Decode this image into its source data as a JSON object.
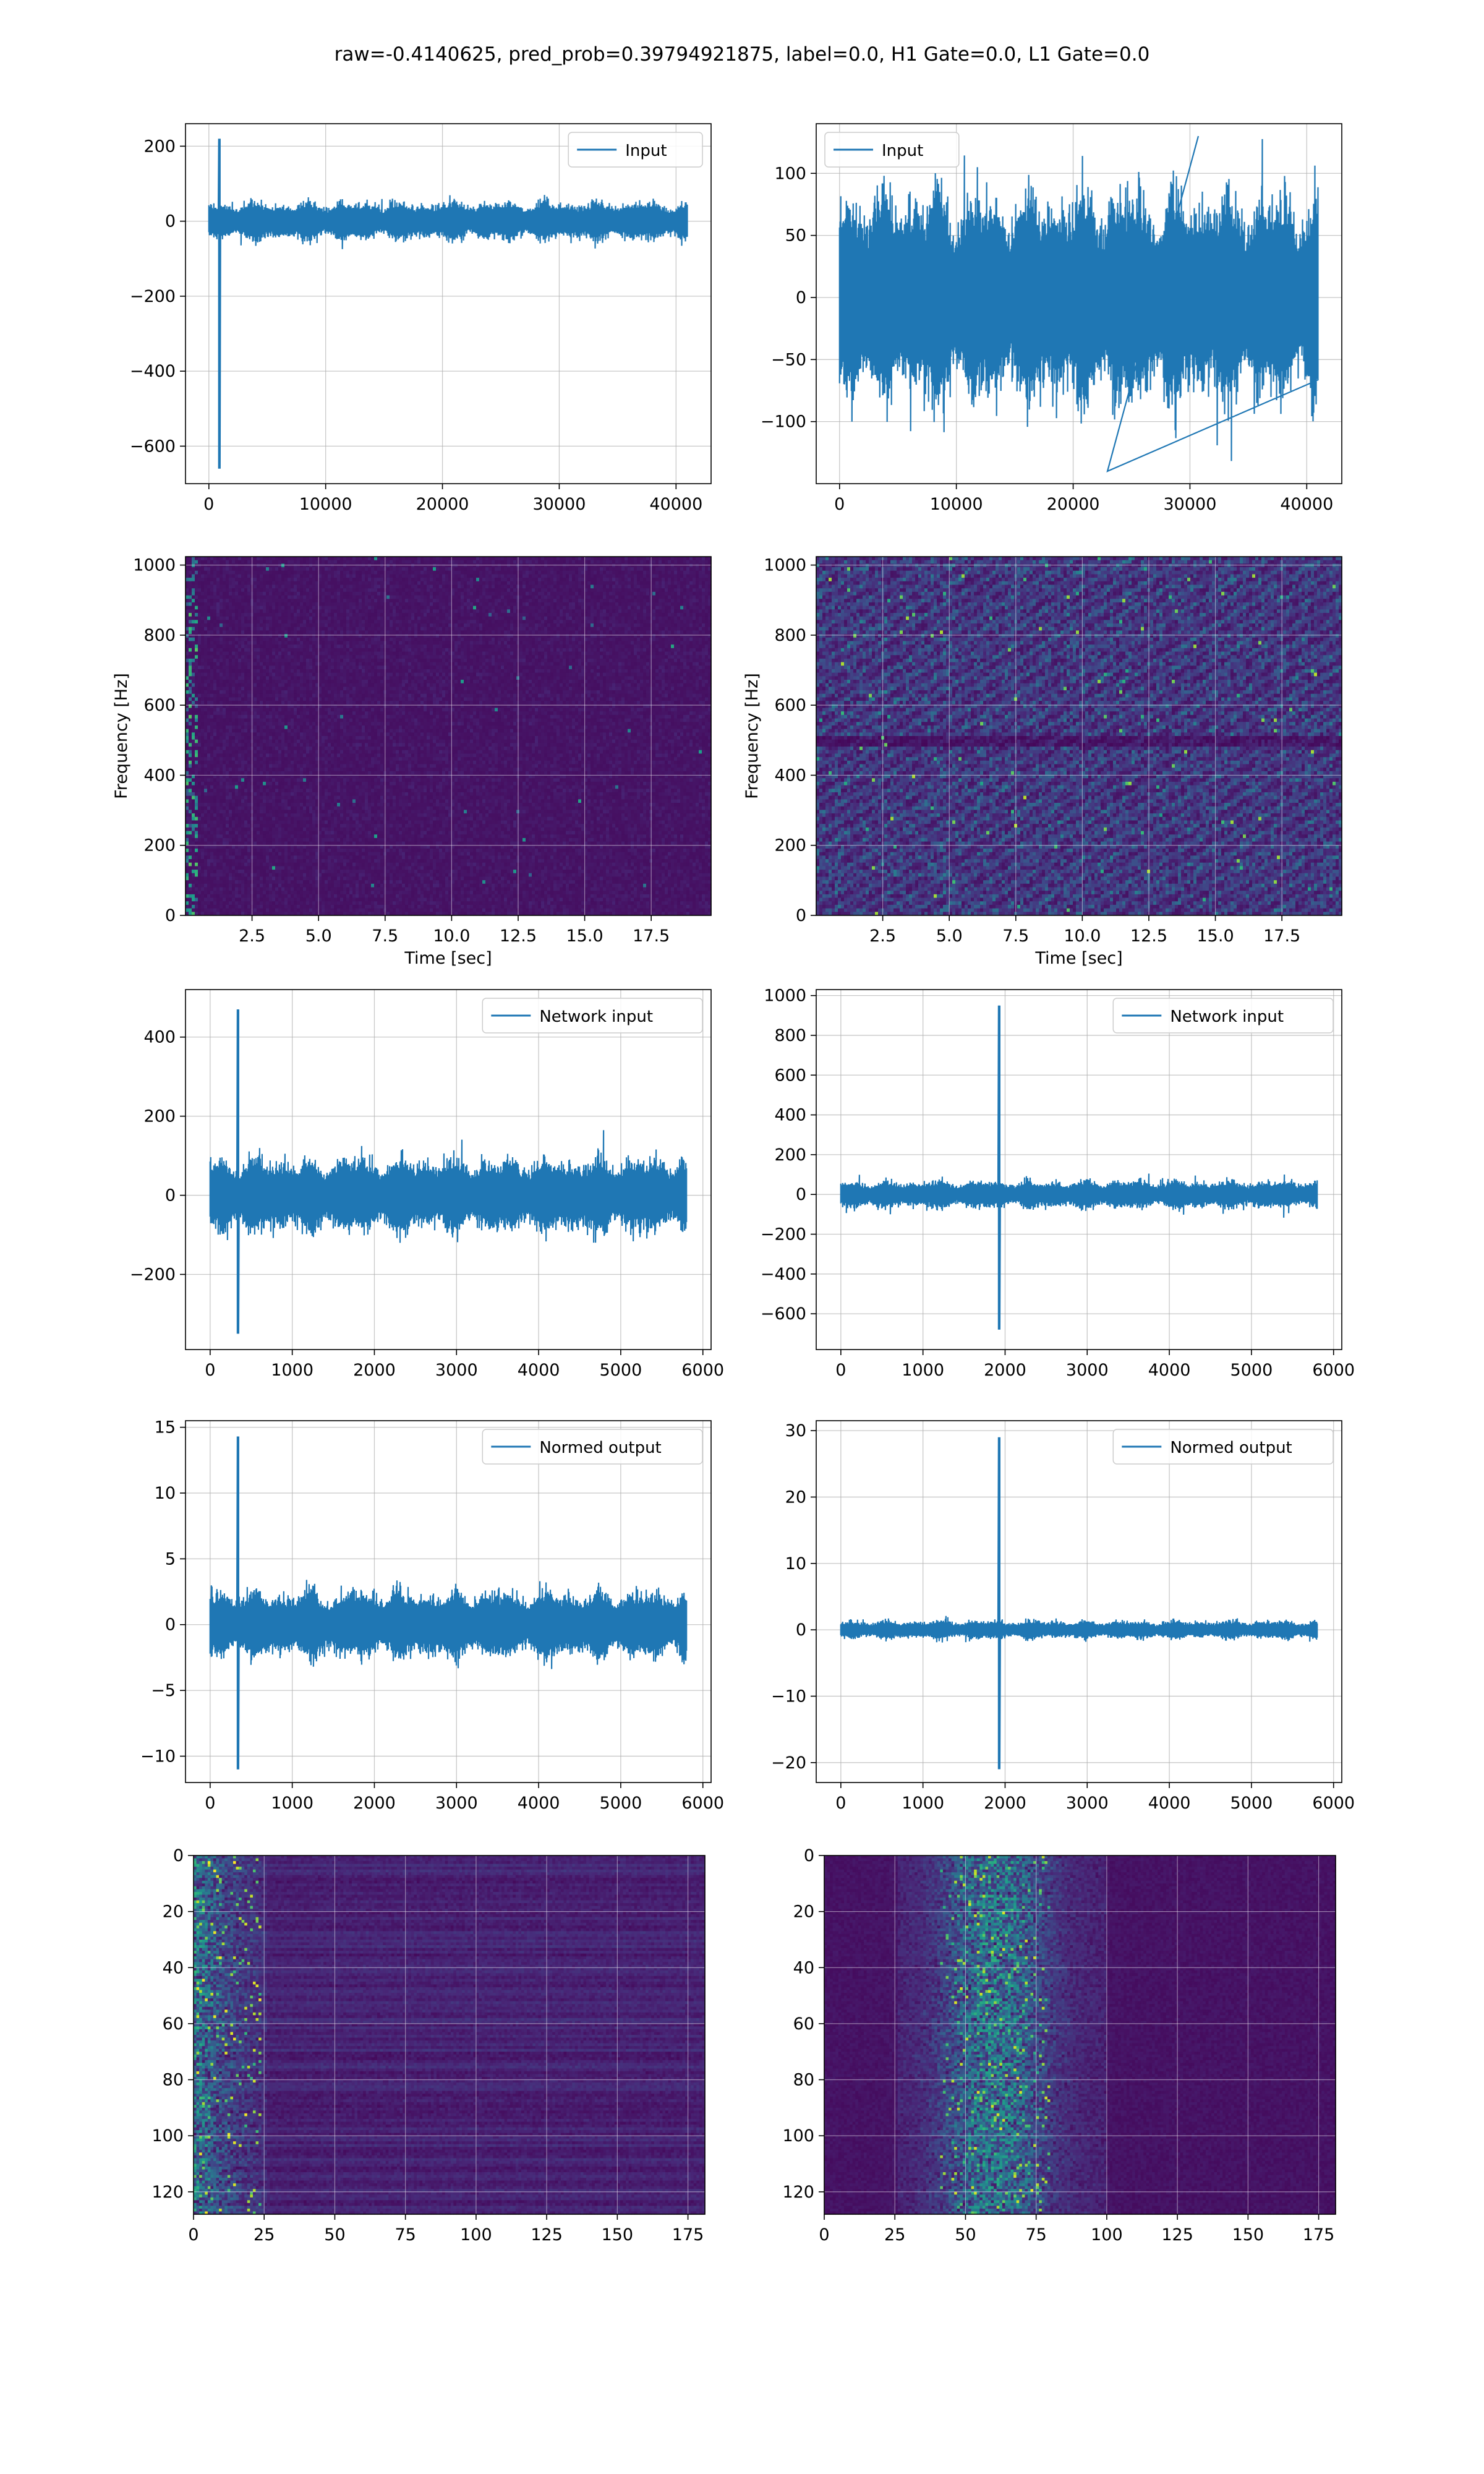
{
  "figure": {
    "title": "raw=-0.4140625, pred_prob=0.39794921875, label=0.0, H1 Gate=0.0, L1 Gate=0.0"
  },
  "colors": {
    "line": "#1f77b4",
    "grid": "#b0b0b0",
    "viridis_low": "#440154",
    "viridis_high": "#fde725"
  },
  "chart_data": [
    {
      "type": "line",
      "panel": "row1-left",
      "series": [
        {
          "name": "Input",
          "x_range": [
            0,
            40960
          ],
          "baseline": 0,
          "noise_amp": 60,
          "min": -660,
          "max": 220,
          "spike_x": 900
        }
      ],
      "xlim": [
        -2000,
        43000
      ],
      "ylim": [
        -700,
        260
      ],
      "xticks": [
        0,
        10000,
        20000,
        30000,
        40000
      ],
      "yticks": [
        200,
        0,
        -200,
        -400,
        -600
      ],
      "legend": "top-right",
      "grid": true,
      "xlabel": "",
      "ylabel": ""
    },
    {
      "type": "line",
      "panel": "row1-right",
      "series": [
        {
          "name": "Input",
          "x_range": [
            0,
            40960
          ],
          "baseline": 0,
          "noise_amp": 100,
          "min": -140,
          "max": 130
        }
      ],
      "xlim": [
        -2000,
        43000
      ],
      "ylim": [
        -150,
        140
      ],
      "xticks": [
        0,
        10000,
        20000,
        30000,
        40000
      ],
      "yticks": [
        100,
        50,
        0,
        -50,
        -100
      ],
      "legend": "top-left",
      "grid": true,
      "xlabel": "",
      "ylabel": ""
    },
    {
      "type": "heatmap",
      "panel": "row2-left",
      "colormap": "viridis",
      "xlim": [
        0,
        19.75
      ],
      "ylim": [
        0,
        1024
      ],
      "xticks": [
        "2.5",
        "5.0",
        "7.5",
        "10.0",
        "12.5",
        "15.0",
        "17.5"
      ],
      "yticks": [
        "0",
        "200",
        "400",
        "600",
        "800",
        "1000"
      ],
      "xlabel": "Time [sec]",
      "ylabel": "Frequency [Hz]",
      "grid": true,
      "intensity": "low",
      "features": "bright power near t=0.4 s"
    },
    {
      "type": "heatmap",
      "panel": "row2-right",
      "colormap": "viridis",
      "xlim": [
        0,
        19.75
      ],
      "ylim": [
        0,
        1024
      ],
      "xticks": [
        "2.5",
        "5.0",
        "7.5",
        "10.0",
        "12.5",
        "15.0",
        "17.5"
      ],
      "yticks": [
        "0",
        "200",
        "400",
        "600",
        "800",
        "1000"
      ],
      "xlabel": "Time [sec]",
      "ylabel": "Frequency [Hz]",
      "grid": true,
      "intensity": "medium",
      "features": "dark band near 500 Hz"
    },
    {
      "type": "line",
      "panel": "row3-left",
      "series": [
        {
          "name": "Network input",
          "x_range": [
            0,
            5800
          ],
          "baseline": 0,
          "noise_amp": 110,
          "min": -350,
          "max": 470,
          "spike_x": 340
        }
      ],
      "xlim": [
        -300,
        6100
      ],
      "ylim": [
        -390,
        520
      ],
      "xticks": [
        0,
        1000,
        2000,
        3000,
        4000,
        5000,
        6000
      ],
      "yticks": [
        400,
        200,
        0,
        -200
      ],
      "legend": "top-right",
      "grid": true,
      "xlabel": "",
      "ylabel": ""
    },
    {
      "type": "line",
      "panel": "row3-right",
      "series": [
        {
          "name": "Network input",
          "x_range": [
            0,
            5800
          ],
          "baseline": 0,
          "noise_amp": 80,
          "min": -680,
          "max": 950,
          "spike_x": 1930
        }
      ],
      "xlim": [
        -300,
        6100
      ],
      "ylim": [
        -780,
        1030
      ],
      "xticks": [
        0,
        1000,
        2000,
        3000,
        4000,
        5000,
        6000
      ],
      "yticks": [
        1000,
        800,
        600,
        400,
        200,
        0,
        -200,
        -400,
        -600
      ],
      "legend": "top-right",
      "grid": true,
      "xlabel": "",
      "ylabel": ""
    },
    {
      "type": "line",
      "panel": "row4-left",
      "series": [
        {
          "name": "Normed output",
          "x_range": [
            0,
            5800
          ],
          "baseline": 0,
          "noise_amp": 3,
          "min": -11,
          "max": 14.3,
          "spike_x": 340
        }
      ],
      "xlim": [
        -300,
        6100
      ],
      "ylim": [
        -12,
        15.5
      ],
      "xticks": [
        0,
        1000,
        2000,
        3000,
        4000,
        5000,
        6000
      ],
      "yticks": [
        15,
        10,
        5,
        0,
        -5,
        -10
      ],
      "legend": "top-right",
      "grid": true,
      "xlabel": "",
      "ylabel": ""
    },
    {
      "type": "line",
      "panel": "row4-right",
      "series": [
        {
          "name": "Normed output",
          "x_range": [
            0,
            5800
          ],
          "baseline": 0,
          "noise_amp": 1.6,
          "min": -21,
          "max": 29,
          "spike_x": 1930
        }
      ],
      "xlim": [
        -300,
        6100
      ],
      "ylim": [
        -23,
        31.5
      ],
      "xticks": [
        0,
        1000,
        2000,
        3000,
        4000,
        5000,
        6000
      ],
      "yticks": [
        30,
        20,
        10,
        0,
        -10,
        -20
      ],
      "legend": "top-right",
      "grid": true,
      "xlabel": "",
      "ylabel": ""
    },
    {
      "type": "heatmap",
      "panel": "row5-left",
      "colormap": "viridis",
      "rows": 128,
      "cols": 181,
      "xlim": [
        0,
        181
      ],
      "ylim": [
        128,
        0
      ],
      "xticks": [
        "0",
        "25",
        "50",
        "75",
        "100",
        "125",
        "150",
        "175"
      ],
      "yticks": [
        "0",
        "20",
        "40",
        "60",
        "80",
        "100",
        "120"
      ],
      "grid": true,
      "features": "bright activations in columns 0-25"
    },
    {
      "type": "heatmap",
      "panel": "row5-right",
      "colormap": "viridis",
      "rows": 128,
      "cols": 181,
      "xlim": [
        0,
        181
      ],
      "ylim": [
        128,
        0
      ],
      "xticks": [
        "0",
        "25",
        "50",
        "75",
        "100",
        "125",
        "150",
        "175"
      ],
      "yticks": [
        "0",
        "20",
        "40",
        "60",
        "80",
        "100",
        "120"
      ],
      "grid": true,
      "features": "bright activations in columns 30-100"
    }
  ]
}
